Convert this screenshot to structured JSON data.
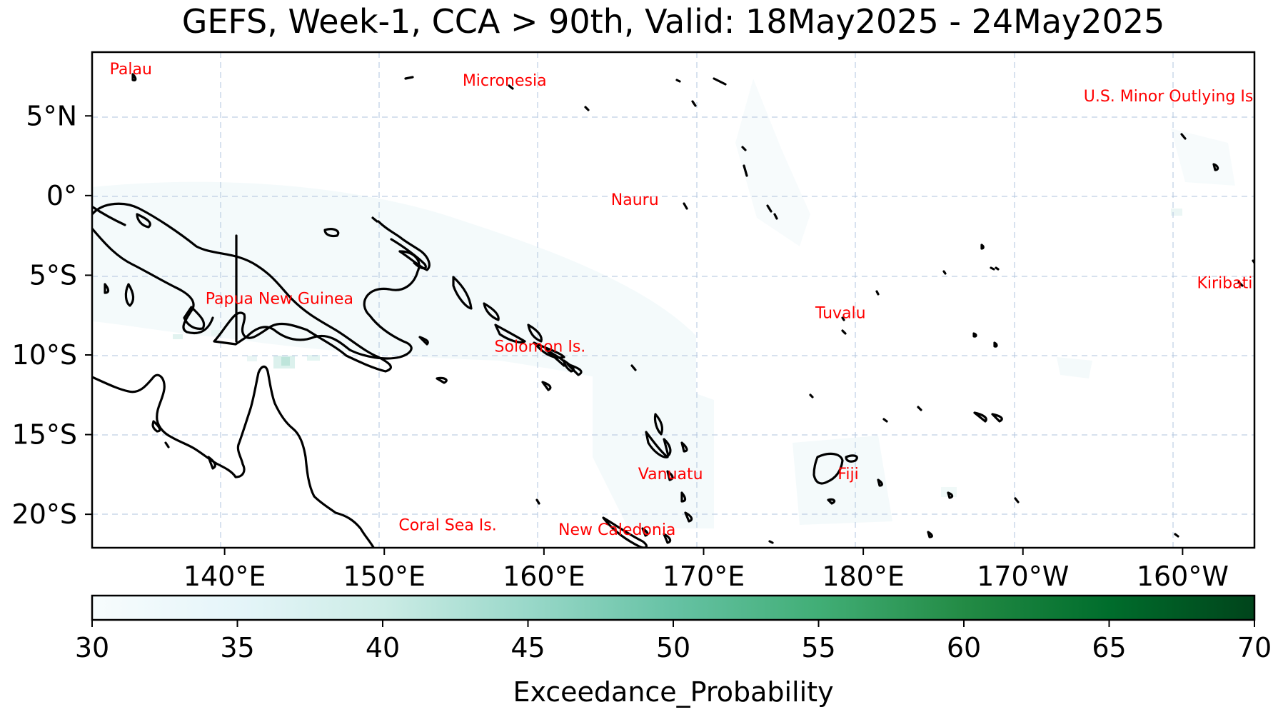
{
  "title": "GEFS, Week-1, CCA > 90th, Valid: 18May2025 - 24May2025",
  "map": {
    "extent": {
      "lon_min": 131.7,
      "lon_max": 204.5,
      "lat_min": -22.1,
      "lat_max": 9.0
    },
    "lon_ticks": [
      {
        "lon": 140,
        "label": "140°E"
      },
      {
        "lon": 150,
        "label": "150°E"
      },
      {
        "lon": 160,
        "label": "160°E"
      },
      {
        "lon": 170,
        "label": "170°E"
      },
      {
        "lon": 180,
        "label": "180°E"
      },
      {
        "lon": 190,
        "label": "170°W"
      },
      {
        "lon": 200,
        "label": "160°W"
      }
    ],
    "lat_ticks": [
      {
        "lat": 5,
        "label": "5°N"
      },
      {
        "lat": 0,
        "label": "0°"
      },
      {
        "lat": -5,
        "label": "5°S"
      },
      {
        "lat": -10,
        "label": "10°S"
      },
      {
        "lat": -15,
        "label": "15°S"
      },
      {
        "lat": -20,
        "label": "20°S"
      }
    ],
    "gridlines": true,
    "places": [
      {
        "name": "Palau",
        "lon": 132.8,
        "lat": 7.6
      },
      {
        "name": "Micronesia",
        "lon": 154.9,
        "lat": 6.9
      },
      {
        "name": "U.S. Minor Outlying Is.",
        "lon": 193.8,
        "lat": 5.9
      },
      {
        "name": "Nauru",
        "lon": 164.2,
        "lat": -0.6
      },
      {
        "name": "Kiribati",
        "lon": 200.9,
        "lat": -5.8
      },
      {
        "name": "Papua New Guinea",
        "lon": 138.8,
        "lat": -6.8
      },
      {
        "name": "Tuvalu",
        "lon": 177.0,
        "lat": -7.7
      },
      {
        "name": "Solomon Is.",
        "lon": 156.9,
        "lat": -9.8
      },
      {
        "name": "Vanuatu",
        "lon": 165.9,
        "lat": -17.8
      },
      {
        "name": "Fiji",
        "lon": 178.4,
        "lat": -17.8
      },
      {
        "name": "Coral Sea Is.",
        "lon": 150.9,
        "lat": -21.0
      },
      {
        "name": "New Caledonia",
        "lon": 160.9,
        "lat": -21.3
      }
    ]
  },
  "colorbar": {
    "label": "Exceedance_Probability",
    "min": 30,
    "max": 70,
    "ticks": [
      30,
      35,
      40,
      45,
      50,
      55,
      60,
      65,
      70
    ],
    "cmap": "BuGn",
    "colors": [
      "#f7fcfd",
      "#e5f5f9",
      "#ccece6",
      "#99d8c9",
      "#66c2a4",
      "#41ae76",
      "#238b45",
      "#006d2c",
      "#00441b"
    ]
  },
  "colors": {
    "place_label": "#ff0000",
    "coastline": "#000000",
    "grid": "#b0c4de"
  }
}
